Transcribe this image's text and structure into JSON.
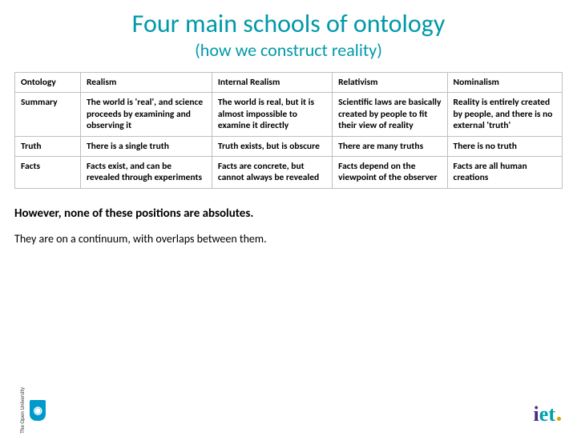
{
  "title": "Four main schools of ontology",
  "subtitle": "(how we construct reality)",
  "colors": {
    "title_color": "#0099a8",
    "text_color": "#000000",
    "border_color": "#bfbfbf",
    "background": "#ffffff"
  },
  "table": {
    "type": "table",
    "columns": [
      "Ontology",
      "Realism",
      "Internal Realism",
      "Relativism",
      "Nominalism"
    ],
    "column_widths_pct": [
      12,
      24,
      22,
      21,
      21
    ],
    "header_fontsize": 11.5,
    "cell_fontsize": 11.5,
    "cell_fontweight": 700,
    "rows": [
      {
        "label": "Summary",
        "cells": [
          "The world is 'real', and science proceeds by examining and observing it",
          "The world is real, but it is almost impossible to examine it directly",
          "Scientific laws are basically created by people to fit their view of reality",
          "Reality is entirely created by people, and there is no external 'truth'"
        ]
      },
      {
        "label": "Truth",
        "cells": [
          "There is a single truth",
          "Truth exists, but is obscure",
          "There are many truths",
          "There is no truth"
        ]
      },
      {
        "label": "Facts",
        "cells": [
          "Facts exist, and can be revealed through experiments",
          "Facts are concrete, but cannot always be revealed",
          "Facts depend on the viewpoint of the observer",
          "Facts are all human creations"
        ]
      }
    ]
  },
  "note1": "However, none of these positions are absolutes.",
  "note2": "They are on a continuum, with overlaps between them.",
  "footer": {
    "left_logo_text": "The Open University",
    "left_logo_glyph": "◉",
    "right_logo_text": "iet"
  }
}
